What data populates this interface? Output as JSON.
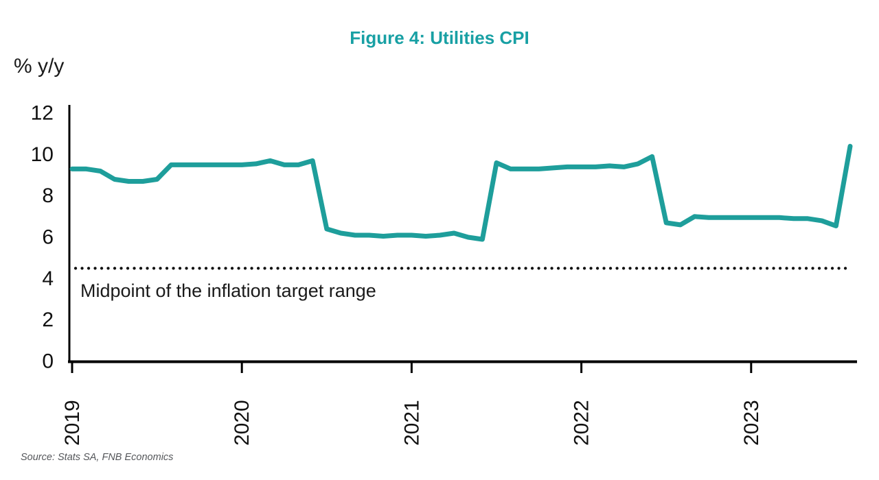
{
  "figure": {
    "title": "Figure 4: Utilities CPI",
    "y_axis_label": "% y/y",
    "source": "Source: Stats SA, FNB Economics"
  },
  "colors": {
    "series": "#1E9E9B",
    "title": "#18A0A4",
    "axis": "#000000",
    "reference_line": "#111111",
    "text": "#1A1A1A",
    "source_text": "#54565A"
  },
  "chart_data": {
    "type": "line",
    "title": "Figure 4: Utilities CPI",
    "xlabel": "",
    "ylabel": "% y/y",
    "ylim": [
      0,
      12
    ],
    "y_ticks": [
      0,
      2,
      4,
      6,
      8,
      10,
      12
    ],
    "x_tick_labels": [
      "2019",
      "2020",
      "2021",
      "2022",
      "2023"
    ],
    "grid": false,
    "legend_position": "none",
    "x_monthly": [
      "2019-01",
      "2019-02",
      "2019-03",
      "2019-04",
      "2019-05",
      "2019-06",
      "2019-07",
      "2019-08",
      "2019-09",
      "2019-10",
      "2019-11",
      "2019-12",
      "2020-01",
      "2020-02",
      "2020-03",
      "2020-04",
      "2020-05",
      "2020-06",
      "2020-07",
      "2020-08",
      "2020-09",
      "2020-10",
      "2020-11",
      "2020-12",
      "2021-01",
      "2021-02",
      "2021-03",
      "2021-04",
      "2021-05",
      "2021-06",
      "2021-07",
      "2021-08",
      "2021-09",
      "2021-10",
      "2021-11",
      "2021-12",
      "2022-01",
      "2022-02",
      "2022-03",
      "2022-04",
      "2022-05",
      "2022-06",
      "2022-07",
      "2022-08",
      "2022-09",
      "2022-10",
      "2022-11",
      "2022-12",
      "2023-01",
      "2023-02",
      "2023-03",
      "2023-04",
      "2023-05",
      "2023-06",
      "2023-07",
      "2023-08"
    ],
    "series": [
      {
        "name": "Utilities CPI (% y/y)",
        "values": [
          9.3,
          9.3,
          9.2,
          8.8,
          8.7,
          8.7,
          8.8,
          9.5,
          9.5,
          9.5,
          9.5,
          9.5,
          9.5,
          9.55,
          9.7,
          9.5,
          9.5,
          9.7,
          6.4,
          6.2,
          6.1,
          6.1,
          6.05,
          6.1,
          6.1,
          6.05,
          6.1,
          6.2,
          6.0,
          5.9,
          9.6,
          9.3,
          9.3,
          9.3,
          9.35,
          9.4,
          9.4,
          9.4,
          9.45,
          9.4,
          9.55,
          9.9,
          6.7,
          6.6,
          7.0,
          6.95,
          6.95,
          6.95,
          6.95,
          6.95,
          6.95,
          6.9,
          6.9,
          6.8,
          6.55,
          10.4
        ]
      }
    ],
    "reference_line": {
      "value": 4.5,
      "style": "dotted",
      "label": "Midpoint of the inflation target range"
    }
  }
}
